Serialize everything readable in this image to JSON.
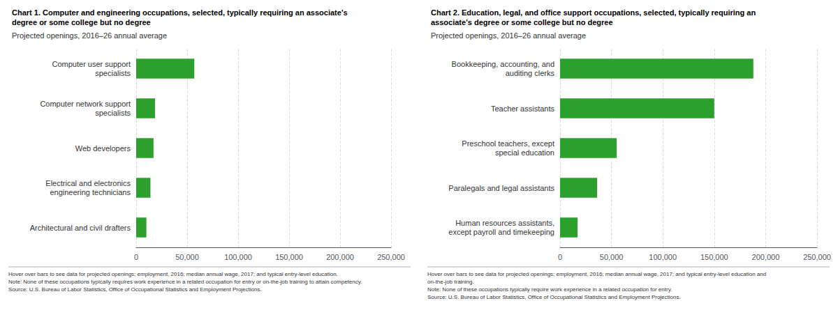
{
  "chart_data": [
    {
      "type": "bar",
      "orientation": "horizontal",
      "title": "Chart 1. Computer and engineering occupations, selected, typically requiring an associate's\ndegree or some college but no degree",
      "subtitle": "Projected openings, 2016–26 annual average",
      "categories": [
        "Architectural and civil drafters",
        "Electrical and electronics\nengineering technicians",
        "Web developers",
        "Computer network support\nspecialists",
        "Computer user support\nspecialists"
      ],
      "values": [
        10000,
        14000,
        17000,
        18500,
        57000
      ],
      "color": "#2ca02c",
      "xlim": [
        0,
        250000
      ],
      "xticks": [
        0,
        {
          "value": 50000,
          "label": "50,000"
        },
        {
          "value": 100000,
          "label": "100,000"
        },
        {
          "value": 150000,
          "label": "150,000"
        },
        {
          "value": 200000,
          "label": "200,000"
        },
        {
          "value": 250000,
          "label": "250,000"
        }
      ],
      "grid": true,
      "annotations": [
        "Hover over bars to see data for projected openings; employment, 2016; median annual wage, 2017; and typical entry-level education.",
        "Note: None of these occupations typically requires work experience in a related occupation for entry or on-the-job training to attain competency.",
        "Source: U.S. Bureau of Labor Statistics, Office of Occupational Statistics and Employment Projections."
      ]
    },
    {
      "type": "bar",
      "orientation": "horizontal",
      "title": "Chart 2. Education, legal, and office support occupations, selected, typically requiring an\nassociate's degree or some college but no degree",
      "subtitle": "Projected openings, 2016–26 annual average",
      "categories": [
        "Human resources assistants,\nexcept payroll and timekeeping",
        "Paralegals and legal assistants",
        "Preschool teachers, except\nspecial education",
        "Teacher assistants",
        "Bookkeeping, accounting, and\nauditing clerks"
      ],
      "values": [
        17000,
        36000,
        55000,
        150000,
        188000
      ],
      "color": "#2ca02c",
      "xlim": [
        0,
        250000
      ],
      "xticks": [
        0,
        {
          "value": 50000,
          "label": "50,000"
        },
        {
          "value": 100000,
          "label": "100,000"
        },
        {
          "value": 150000,
          "label": "150,000"
        },
        {
          "value": 200000,
          "label": "200,000"
        },
        {
          "value": 250000,
          "label": "250,000"
        }
      ],
      "grid": true,
      "annotations": [
        "Hover over bars to see data for projected openings; employment, 2016; median annual wage, 2017; and typical entry-level education and",
        "on-the-job training.",
        "Note: None of these occupations typically require work experience in a related occupation for entry.",
        "Source: U.S. Bureau of Labor Statistics, Office of Occupational Statistics and Employment Projections."
      ]
    }
  ]
}
